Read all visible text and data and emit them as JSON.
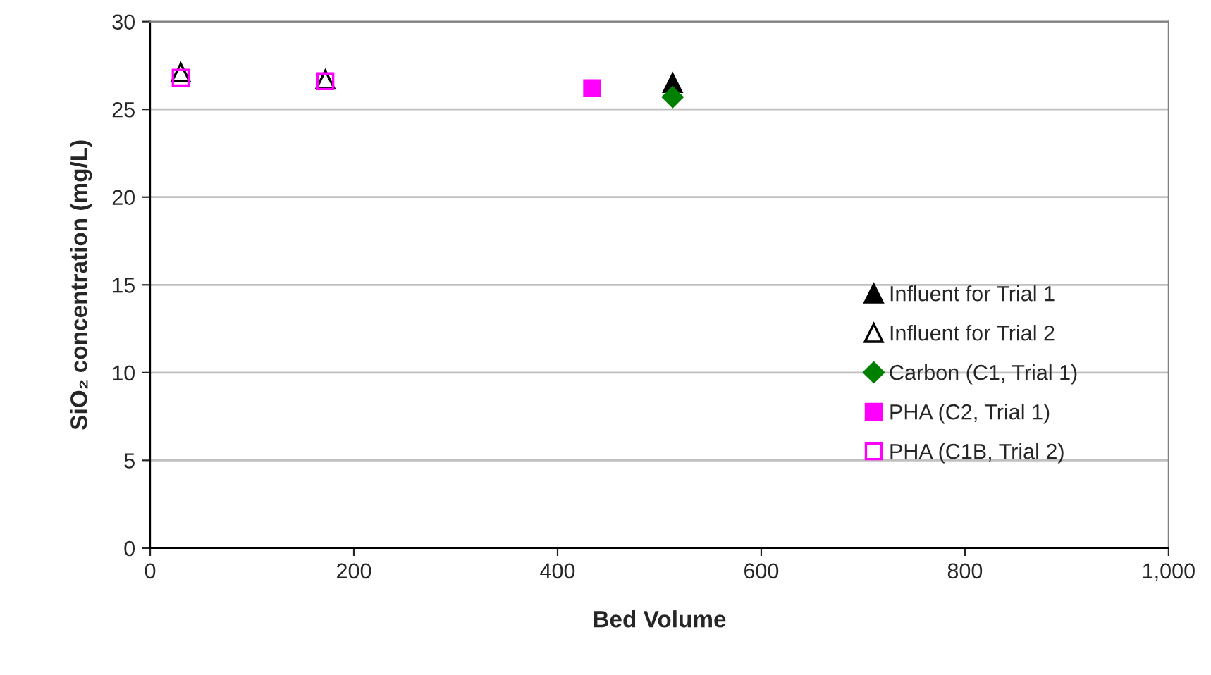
{
  "chart_data": {
    "type": "scatter",
    "xlabel": "Bed Volume",
    "ylabel": "SiO₂ concentration (mg/L)",
    "xlim": [
      0,
      1000
    ],
    "xticks": [
      0,
      200,
      400,
      600,
      800,
      {
        "value": 1000,
        "label": "1,000"
      }
    ],
    "ylim": [
      0,
      30
    ],
    "yticks": [
      0,
      5,
      10,
      15,
      20,
      25,
      30
    ],
    "grid": "y",
    "legend": "right",
    "series": [
      {
        "name": "Influent for Trial 1",
        "color": "#000000",
        "marker": "triangle",
        "x": [
          513
        ],
        "values": [
          26.5
        ]
      },
      {
        "name": "Influent for Trial 2",
        "color": "#000000",
        "marker": "triangle",
        "x": [
          30,
          172
        ],
        "values": [
          27.1,
          26.7
        ]
      },
      {
        "name": "Carbon (C1, Trial 1)",
        "color": "#008000",
        "marker": "diamond",
        "x": [
          513
        ],
        "values": [
          25.7
        ]
      },
      {
        "name": "PHA (C2, Trial 1)",
        "color": "#ff00ff",
        "marker": "square",
        "x": [
          434
        ],
        "values": [
          26.2
        ]
      },
      {
        "name": "PHA (C1B, Trial 2)",
        "color": "#ff00ff",
        "marker": "square",
        "x": [
          30,
          172
        ],
        "values": [
          26.8,
          26.6
        ]
      }
    ]
  }
}
